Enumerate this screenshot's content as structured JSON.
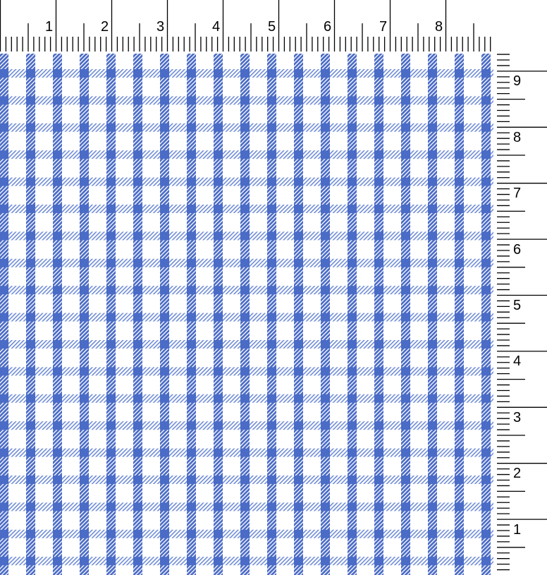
{
  "top_ruler": {
    "labels": [
      "1",
      "2",
      "3",
      "4",
      "5",
      "6",
      "7",
      "8"
    ]
  },
  "right_ruler": {
    "labels": [
      "9",
      "8",
      "7",
      "6",
      "5",
      "4",
      "3",
      "2",
      "1"
    ]
  },
  "fabric": {
    "pattern": "gingham-check",
    "stripe_color": "#4a6bc6",
    "background_color": "#ffffff"
  }
}
